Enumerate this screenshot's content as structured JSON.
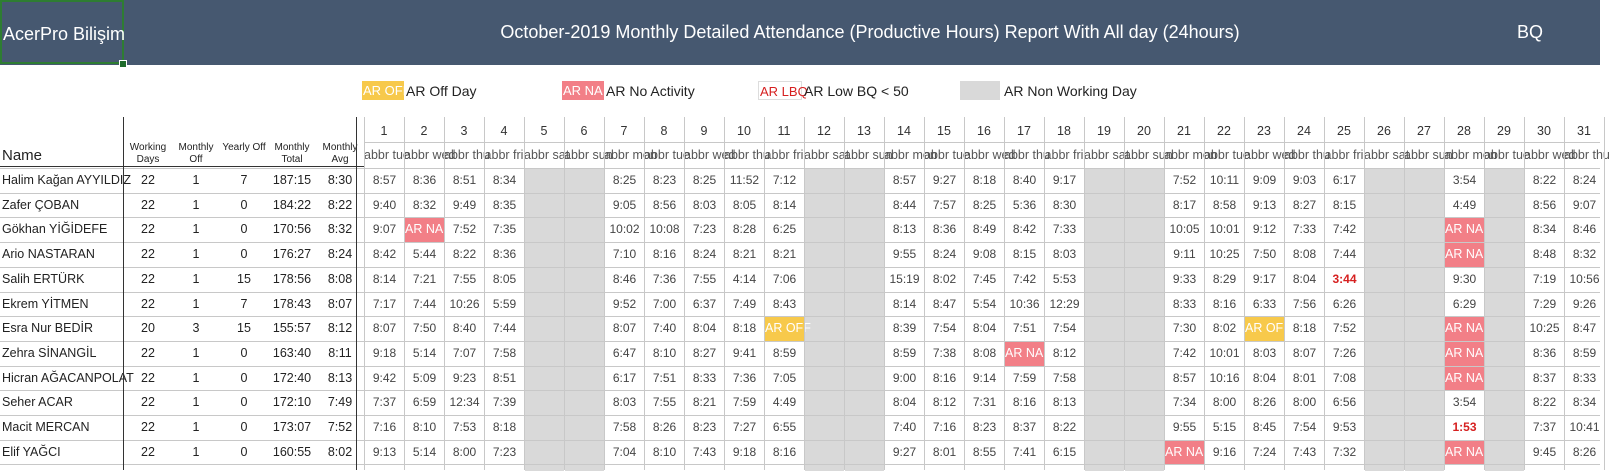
{
  "header": {
    "company": "AcerPro Bilişim",
    "title": "October-2019 Monthly Detailed Attendance (Productive Hours) Report With All day (24hours)",
    "right_label": "BQ"
  },
  "legend": [
    {
      "box": "AR OFF",
      "label": "AR Off Day",
      "kind": "off"
    },
    {
      "box": "AR NA",
      "label": "AR No Activity",
      "kind": "na"
    },
    {
      "box": "AR LBQ",
      "label": "AR Low BQ < 50",
      "kind": "lbq"
    },
    {
      "box": "",
      "label": "AR Non Working Day",
      "kind": "gray"
    }
  ],
  "columns": {
    "name": "Name",
    "working_days": "Working Days",
    "monthly_off": "Monthly Off",
    "yearly_off": "Yearly Off",
    "monthly_total": "Monthly Total",
    "monthly_avg": "Monthly Avg"
  },
  "days": [
    "1",
    "2",
    "3",
    "4",
    "5",
    "6",
    "7",
    "8",
    "9",
    "10",
    "11",
    "12",
    "13",
    "14",
    "15",
    "16",
    "17",
    "18",
    "19",
    "20",
    "21",
    "22",
    "23",
    "24",
    "25",
    "26",
    "27",
    "28",
    "29",
    "30",
    "31"
  ],
  "day_abbr": [
    "abbr tue",
    "abbr wed",
    "abbr thu",
    "abbr fri",
    "abbr sat",
    "abbr sun",
    "abbr mon",
    "abbr tue",
    "abbr wed",
    "abbr thu",
    "abbr fri",
    "abbr sat",
    "abbr sun",
    "abbr mon",
    "abbr tue",
    "abbr wed",
    "abbr thu",
    "abbr fri",
    "abbr sat",
    "abbr sun",
    "abbr mon",
    "abbr tue",
    "abbr wed",
    "abbr thu",
    "abbr fri",
    "abbr sat",
    "abbr sun",
    "abbr mon",
    "abbr tue",
    "abbr wed",
    "abbr thu"
  ],
  "non_working_days": [
    5,
    6,
    12,
    13,
    19,
    20,
    26,
    27,
    29
  ],
  "employees": [
    {
      "name": "Halim Kağan AYYILDIZ",
      "working_days": "22",
      "monthly_off": "1",
      "yearly_off": "7",
      "monthly_total": "187:15",
      "monthly_avg": "8:30",
      "days": [
        "8:57",
        "8:36",
        "8:51",
        "8:34",
        "",
        "",
        "8:25",
        "8:23",
        "8:25",
        "11:52",
        "7:12",
        "",
        "",
        "8:57",
        "9:27",
        "8:18",
        "8:40",
        "9:17",
        "",
        "",
        "7:52",
        "10:11",
        "9:09",
        "9:03",
        "6:17",
        "",
        "",
        "3:54",
        "",
        "8:22",
        "8:24"
      ]
    },
    {
      "name": "Zafer ÇOBAN",
      "working_days": "22",
      "monthly_off": "1",
      "yearly_off": "0",
      "monthly_total": "184:22",
      "monthly_avg": "8:22",
      "days": [
        "9:40",
        "8:32",
        "9:49",
        "8:35",
        "",
        "",
        "9:05",
        "8:56",
        "8:03",
        "8:05",
        "8:14",
        "",
        "",
        "8:44",
        "7:57",
        "8:25",
        "5:36",
        "8:30",
        "",
        "",
        "8:17",
        "8:58",
        "9:13",
        "8:27",
        "8:15",
        "",
        "",
        "4:49",
        "",
        "8:56",
        "9:07"
      ]
    },
    {
      "name": "Gökhan YİĞİDEFE",
      "working_days": "22",
      "monthly_off": "1",
      "yearly_off": "0",
      "monthly_total": "170:56",
      "monthly_avg": "8:32",
      "days": [
        "9:07",
        "AR NA",
        "7:52",
        "7:35",
        "",
        "",
        "10:02",
        "10:08",
        "7:23",
        "8:28",
        "6:25",
        "",
        "",
        "8:13",
        "8:36",
        "8:49",
        "8:42",
        "7:33",
        "",
        "",
        "10:05",
        "10:01",
        "9:12",
        "7:33",
        "7:42",
        "",
        "",
        "AR NA",
        "",
        "8:34",
        "8:46"
      ]
    },
    {
      "name": "Ario NASTARAN",
      "working_days": "22",
      "monthly_off": "1",
      "yearly_off": "0",
      "monthly_total": "176:27",
      "monthly_avg": "8:24",
      "days": [
        "8:42",
        "5:44",
        "8:22",
        "8:36",
        "",
        "",
        "7:10",
        "8:16",
        "8:24",
        "8:21",
        "8:21",
        "",
        "",
        "9:55",
        "8:24",
        "9:08",
        "8:15",
        "8:03",
        "",
        "",
        "9:11",
        "10:25",
        "7:50",
        "8:08",
        "7:44",
        "",
        "",
        "AR NA",
        "",
        "8:48",
        "8:32"
      ]
    },
    {
      "name": "Salih ERTÜRK",
      "working_days": "22",
      "monthly_off": "1",
      "yearly_off": "15",
      "monthly_total": "178:56",
      "monthly_avg": "8:08",
      "days": [
        "8:14",
        "7:21",
        "7:55",
        "8:05",
        "",
        "",
        "8:46",
        "7:36",
        "7:55",
        "4:14",
        "7:06",
        "",
        "",
        "15:19",
        "8:02",
        "7:45",
        "7:42",
        "5:53",
        "",
        "",
        "9:33",
        "8:29",
        "9:17",
        "8:04",
        "3:44",
        "",
        "",
        "9:30",
        "",
        "7:19",
        "10:56"
      ]
    },
    {
      "name": "Ekrem YİTMEN",
      "working_days": "22",
      "monthly_off": "1",
      "yearly_off": "7",
      "monthly_total": "178:43",
      "monthly_avg": "8:07",
      "days": [
        "7:17",
        "7:44",
        "10:26",
        "5:59",
        "",
        "",
        "9:52",
        "7:00",
        "6:37",
        "7:49",
        "8:43",
        "",
        "",
        "8:14",
        "8:47",
        "5:54",
        "10:36",
        "12:29",
        "",
        "",
        "8:33",
        "8:16",
        "6:33",
        "7:56",
        "6:26",
        "",
        "",
        "6:29",
        "",
        "7:29",
        "9:26"
      ]
    },
    {
      "name": "Esra Nur BEDİR",
      "working_days": "20",
      "monthly_off": "3",
      "yearly_off": "15",
      "monthly_total": "155:57",
      "monthly_avg": "8:12",
      "days": [
        "8:07",
        "7:50",
        "8:40",
        "7:44",
        "",
        "",
        "8:07",
        "7:40",
        "8:04",
        "8:18",
        "AR OFF",
        "",
        "",
        "8:39",
        "7:54",
        "8:04",
        "7:51",
        "7:54",
        "",
        "",
        "7:30",
        "8:02",
        "AR OFF",
        "8:18",
        "7:52",
        "",
        "",
        "AR NA",
        "",
        "10:25",
        "8:47"
      ]
    },
    {
      "name": "Zehra SİNANGİL",
      "working_days": "22",
      "monthly_off": "1",
      "yearly_off": "0",
      "monthly_total": "163:40",
      "monthly_avg": "8:11",
      "days": [
        "9:18",
        "5:14",
        "7:07",
        "7:58",
        "",
        "",
        "6:47",
        "8:10",
        "8:27",
        "9:41",
        "8:59",
        "",
        "",
        "8:59",
        "7:38",
        "8:08",
        "AR NA",
        "8:12",
        "",
        "",
        "7:42",
        "10:01",
        "8:03",
        "8:07",
        "7:26",
        "",
        "",
        "AR NA",
        "",
        "8:36",
        "8:59"
      ]
    },
    {
      "name": "Hicran AĞACANPOLAT",
      "working_days": "22",
      "monthly_off": "1",
      "yearly_off": "0",
      "monthly_total": "172:40",
      "monthly_avg": "8:13",
      "days": [
        "9:42",
        "5:09",
        "9:23",
        "8:51",
        "",
        "",
        "6:17",
        "7:51",
        "8:33",
        "7:36",
        "7:05",
        "",
        "",
        "9:00",
        "8:16",
        "9:14",
        "7:59",
        "7:58",
        "",
        "",
        "8:57",
        "10:16",
        "8:04",
        "8:01",
        "7:08",
        "",
        "",
        "AR NA",
        "",
        "8:37",
        "8:33"
      ]
    },
    {
      "name": "Seher ACAR",
      "working_days": "22",
      "monthly_off": "1",
      "yearly_off": "0",
      "monthly_total": "172:10",
      "monthly_avg": "7:49",
      "days": [
        "7:37",
        "6:59",
        "12:34",
        "7:39",
        "",
        "",
        "8:03",
        "7:55",
        "8:21",
        "7:59",
        "4:49",
        "",
        "",
        "8:04",
        "8:12",
        "7:31",
        "8:16",
        "8:13",
        "",
        "",
        "7:34",
        "8:00",
        "8:26",
        "8:00",
        "6:56",
        "",
        "",
        "3:54",
        "",
        "8:22",
        "8:34"
      ]
    },
    {
      "name": "Macit MERCAN",
      "working_days": "22",
      "monthly_off": "1",
      "yearly_off": "0",
      "monthly_total": "173:07",
      "monthly_avg": "7:52",
      "days": [
        "7:16",
        "8:10",
        "7:53",
        "8:18",
        "",
        "",
        "7:58",
        "8:26",
        "8:23",
        "7:27",
        "6:55",
        "",
        "",
        "7:40",
        "7:16",
        "8:23",
        "8:37",
        "8:22",
        "",
        "",
        "9:55",
        "5:15",
        "8:45",
        "7:54",
        "9:53",
        "",
        "",
        "1:53",
        "",
        "7:37",
        "10:41"
      ]
    },
    {
      "name": "Elif YAĞCI",
      "working_days": "22",
      "monthly_off": "1",
      "yearly_off": "0",
      "monthly_total": "160:55",
      "monthly_avg": "8:02",
      "days": [
        "9:13",
        "5:14",
        "8:00",
        "7:23",
        "",
        "",
        "7:04",
        "8:10",
        "7:43",
        "9:18",
        "8:16",
        "",
        "",
        "9:27",
        "8:01",
        "8:55",
        "7:41",
        "6:15",
        "",
        "",
        "AR NA",
        "9:16",
        "7:24",
        "7:43",
        "7:32",
        "",
        "",
        "AR NA",
        "",
        "9:45",
        "8:26"
      ]
    }
  ],
  "red_values": [
    "3:44",
    "1:53"
  ],
  "colors": {
    "header_bg": "#465870",
    "na": "#f27f87",
    "off": "#f7c94b",
    "non_working": "#d9d9d9",
    "low_bq_text": "#d62020"
  }
}
